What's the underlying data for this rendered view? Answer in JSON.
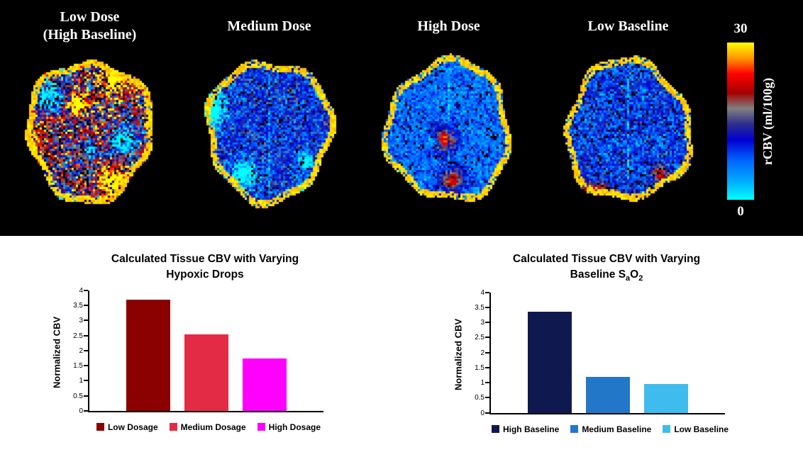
{
  "top_panel": {
    "background": "#000000",
    "maps": [
      {
        "label_line1": "Low Dose",
        "label_line2": "(High Baseline)"
      },
      {
        "label_line1": "Medium Dose",
        "label_line2": ""
      },
      {
        "label_line1": "High Dose",
        "label_line2": ""
      },
      {
        "label_line1": "Low Baseline",
        "label_line2": ""
      }
    ],
    "colorbar": {
      "max_label": "30",
      "min_label": "0",
      "axis_label": "rCBV (ml/100g)",
      "min_color": "#00FFFF",
      "max_color": "#FFFF00"
    }
  },
  "chart_data": [
    {
      "type": "bar",
      "title_line1": "Calculated Tissue CBV with Varying",
      "title_line2_parts": [
        {
          "t": "Hypoxic Drops"
        }
      ],
      "ylabel": "Normalized CBV",
      "ylim": [
        0,
        4
      ],
      "yticks": [
        "0",
        "0.5",
        "1",
        "1.5",
        "2",
        "2.5",
        "3",
        "3.5",
        "4"
      ],
      "categories": [
        "Low Dosage",
        "Medium Dosage",
        "High Dosage"
      ],
      "values": [
        3.7,
        2.55,
        1.75
      ],
      "bar_colors": [
        "#8B0000",
        "#E32B45",
        "#FF00FF"
      ],
      "grid": false,
      "legend_position": "bottom"
    },
    {
      "type": "bar",
      "title_line1": "Calculated Tissue CBV with Varying",
      "title_line2_parts": [
        {
          "t": "Baseline S"
        },
        {
          "t": "a",
          "sub": true
        },
        {
          "t": "O"
        },
        {
          "t": "2",
          "sub": true
        }
      ],
      "ylabel": "Normalized CBV",
      "ylim": [
        0,
        4
      ],
      "yticks": [
        "0",
        "0.5",
        "1",
        "1.5",
        "2",
        "2.5",
        "3",
        "3.5",
        "4"
      ],
      "categories": [
        "High Baseline",
        "Medium Baseline",
        "Low Baseline"
      ],
      "values": [
        3.35,
        1.2,
        0.95
      ],
      "bar_colors": [
        "#10194F",
        "#2377C8",
        "#3FBCEE"
      ],
      "grid": false,
      "legend_position": "bottom"
    }
  ]
}
